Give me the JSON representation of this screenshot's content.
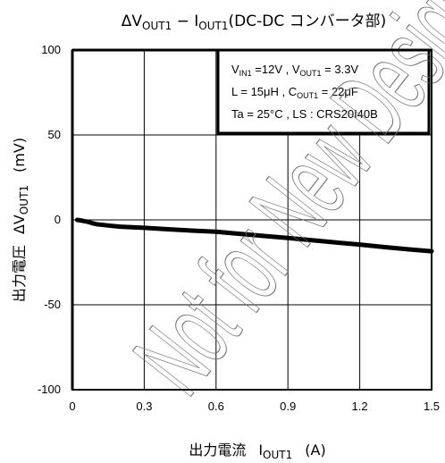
{
  "chart_data": {
    "type": "line",
    "title": {
      "delta": "ΔV",
      "v_sub": "OUT1",
      "dash": " − I",
      "i_sub": "OUT1",
      "rest": "(DC-DC コンバータ部)"
    },
    "xlabel": {
      "jp": "出力電流",
      "sym": "I",
      "sub": "OUT1",
      "unit": "(A)"
    },
    "ylabel": {
      "jp": "出力電圧",
      "sym": "ΔV",
      "sub": "OUT1",
      "unit": "(mV)"
    },
    "xlim": [
      0,
      1.5
    ],
    "ylim": [
      -100,
      100
    ],
    "x_ticks": [
      "0",
      "0.3",
      "0.6",
      "0.9",
      "1.2",
      "1.5"
    ],
    "y_ticks": [
      "100",
      "50",
      "0",
      "-50",
      "-100"
    ],
    "grid": true,
    "conditions": {
      "line1": {
        "a": "V",
        "a_sub": "IN1",
        "b": " =12V , V",
        "b_sub": "OUT1",
        "c": " = 3.3V"
      },
      "line2": {
        "a": "L = 15μH , C",
        "a_sub": "OUT1",
        "b": " = 22μF"
      },
      "line3": {
        "a": "Ta = 25°C , LS : CRS20I40B"
      }
    },
    "watermark": "Not for New Design",
    "series": [
      {
        "x": [
          0.02,
          0.04,
          0.06,
          0.08,
          0.1,
          0.15,
          0.2,
          0.3,
          0.4,
          0.5,
          0.6,
          0.7,
          0.8,
          0.9,
          1.0,
          1.1,
          1.2,
          1.3,
          1.4,
          1.5
        ],
        "y": [
          0,
          -0.5,
          -1,
          -1.8,
          -2.5,
          -3.3,
          -4,
          -4.7,
          -5.5,
          -6.3,
          -7,
          -8.2,
          -9.5,
          -10.7,
          -12,
          -13.3,
          -14.5,
          -16,
          -17.3,
          -18.5
        ]
      }
    ]
  },
  "colors": {
    "line": "#000000",
    "grid": "#000000",
    "watermark": "#6a6a6a",
    "background": "#ffffff"
  }
}
